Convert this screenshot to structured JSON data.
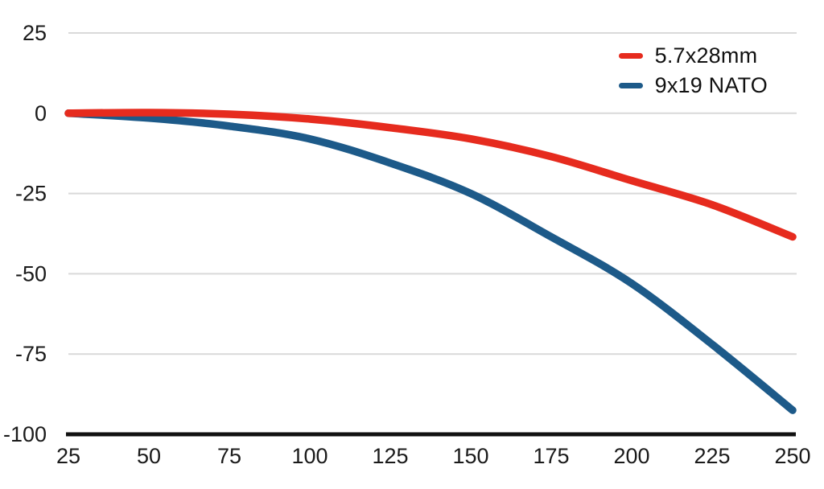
{
  "chart_data": {
    "type": "line",
    "title": "",
    "xlabel": "",
    "ylabel": "",
    "x": [
      25,
      50,
      75,
      100,
      125,
      150,
      175,
      200,
      225,
      250
    ],
    "xticks": [
      "25",
      "50",
      "75",
      "100",
      "125",
      "150",
      "175",
      "200",
      "225",
      "250"
    ],
    "yticks": [
      "25",
      "0",
      "-25",
      "-50",
      "-75",
      "-100"
    ],
    "ytick_values": [
      25,
      0,
      -25,
      -50,
      -75,
      -100
    ],
    "xlim": [
      25,
      250
    ],
    "ylim": [
      -100,
      25
    ],
    "grid": "horizontal-only",
    "legend_position": "top-right",
    "series": [
      {
        "name": "5.7x28mm",
        "color": "#e62b1e",
        "values": [
          0,
          0.2,
          -0.3,
          -1.8,
          -4.5,
          -8,
          -13.5,
          -21,
          -28.5,
          -38.5
        ]
      },
      {
        "name": "9x19 NATO",
        "color": "#1d5a89",
        "values": [
          0,
          -1.5,
          -4,
          -8,
          -15.5,
          -25,
          -38.5,
          -53,
          -72,
          -92.5
        ]
      }
    ]
  },
  "colors": {
    "background": "#ffffff",
    "gridline": "#d9d9d9",
    "axis_line": "#111111",
    "tick_label": "#1a1a1a"
  }
}
